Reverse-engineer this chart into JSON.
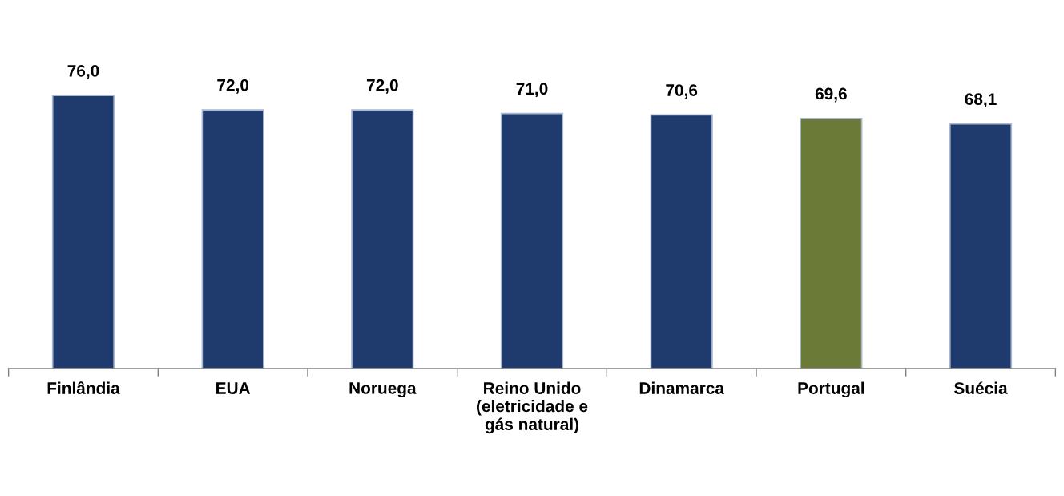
{
  "chart_data": {
    "type": "bar",
    "categories": [
      "Finlândia",
      "EUA",
      "Noruega",
      "Reino Unido\n(eletricidade e\ngás natural)",
      "Dinamarca",
      "Portugal",
      "Suécia"
    ],
    "values": [
      76.0,
      72.0,
      72.0,
      71.0,
      70.6,
      69.6,
      68.1
    ],
    "colors": [
      "#1f3b6e",
      "#1f3b6e",
      "#1f3b6e",
      "#1f3b6e",
      "#1f3b6e",
      "#6b7a36",
      "#1f3b6e"
    ],
    "data_labels": true,
    "value_labels": [
      "76,0",
      "72,0",
      "72,0",
      "71,0",
      "70,6",
      "69,6",
      "68,1"
    ],
    "grid": false,
    "legend": false
  }
}
